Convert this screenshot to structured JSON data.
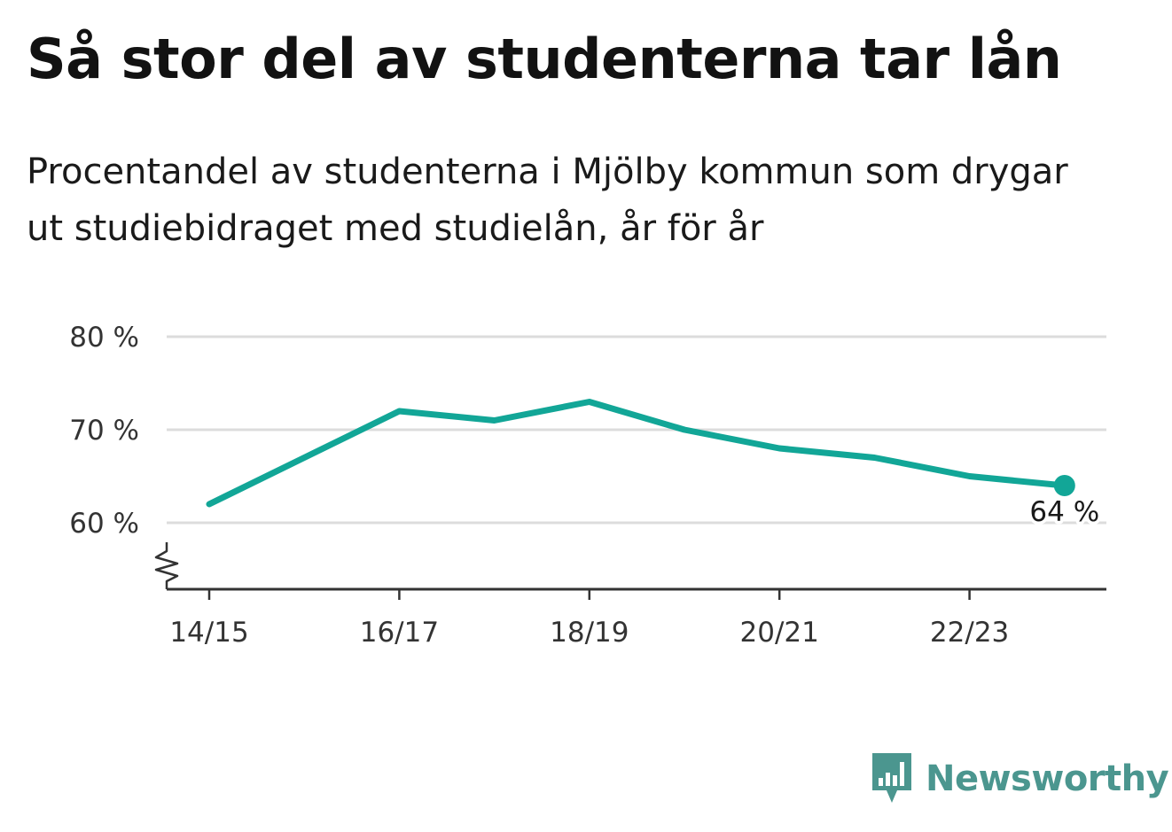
{
  "title": "Så stor del av studenterna tar lån",
  "subtitle": "Procentandel av studenterna i Mjölby kommun som drygar ut studiebidraget med studielån, år för år",
  "brand": {
    "name": "Newsworthy",
    "logo_icon": "bar-chart-speech-bubble-icon",
    "color": "#4b968f"
  },
  "colors": {
    "line": "#12a697",
    "grid": "#dcdcdc",
    "axis": "#333333"
  },
  "chart_data": {
    "type": "line",
    "title": "Så stor del av studenterna tar lån",
    "subtitle": "Procentandel av studenterna i Mjölby kommun som drygar ut studiebidraget med studielån, år för år",
    "x": [
      "14/15",
      "15/16",
      "16/17",
      "17/18",
      "18/19",
      "19/20",
      "20/21",
      "21/22",
      "22/23",
      "23/24"
    ],
    "x_tick_labels": [
      "14/15",
      "16/17",
      "18/19",
      "20/21",
      "22/23"
    ],
    "series": [
      {
        "values": [
          62,
          67,
          72,
          71,
          73,
          70,
          68,
          67,
          65,
          64
        ],
        "color": "#12a697"
      }
    ],
    "y_ticks": [
      60,
      70,
      80
    ],
    "y_tick_labels": [
      "60 %",
      "70 %",
      "80 %"
    ],
    "ylim": [
      60,
      80
    ],
    "y_axis_break": true,
    "grid": true,
    "end_label": "64 %",
    "end_marker": true
  }
}
